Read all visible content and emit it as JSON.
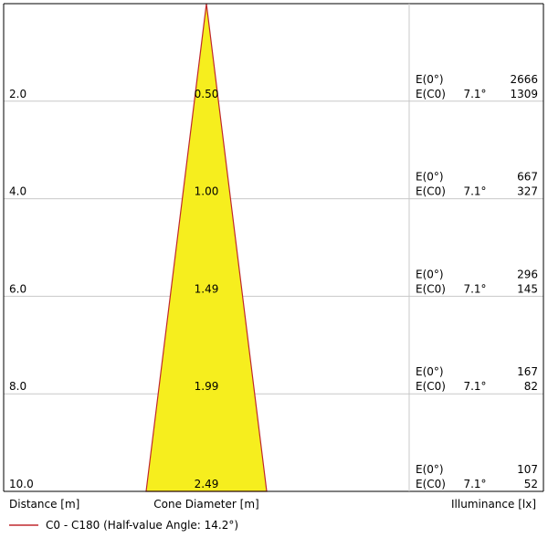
{
  "chart_data": {
    "type": "area",
    "title": "",
    "distance_axis_label": "Distance [m]",
    "diameter_axis_label": "Cone Diameter [m]",
    "illuminance_axis_label": "Illuminance [lx]",
    "legend_label": "C0 - C180 (Half-value Angle: 14.2°)",
    "half_value_angle_deg": 14.2,
    "max_distance": 10.0,
    "rows": [
      {
        "distance": "2.0",
        "diameter": "0.50",
        "e0_label": "E(0°)",
        "e0_value": "2666",
        "ec0_label": "E(C0)",
        "angle": "7.1°",
        "ec0_value": "1309"
      },
      {
        "distance": "4.0",
        "diameter": "1.00",
        "e0_label": "E(0°)",
        "e0_value": "667",
        "ec0_label": "E(C0)",
        "angle": "7.1°",
        "ec0_value": "327"
      },
      {
        "distance": "6.0",
        "diameter": "1.49",
        "e0_label": "E(0°)",
        "e0_value": "296",
        "ec0_label": "E(C0)",
        "angle": "7.1°",
        "ec0_value": "145"
      },
      {
        "distance": "8.0",
        "diameter": "1.99",
        "e0_label": "E(0°)",
        "e0_value": "167",
        "ec0_label": "E(C0)",
        "angle": "7.1°",
        "ec0_value": "82"
      },
      {
        "distance": "10.0",
        "diameter": "2.49",
        "e0_label": "E(0°)",
        "e0_value": "107",
        "ec0_label": "E(C0)",
        "angle": "7.1°",
        "ec0_value": "52"
      }
    ],
    "colors": {
      "cone_fill": "#f6ee1e",
      "cone_edge": "#c0282e",
      "grid": "#c8c8c8",
      "frame": "#000000"
    },
    "grid": true,
    "legend_position": "bottom-left"
  }
}
